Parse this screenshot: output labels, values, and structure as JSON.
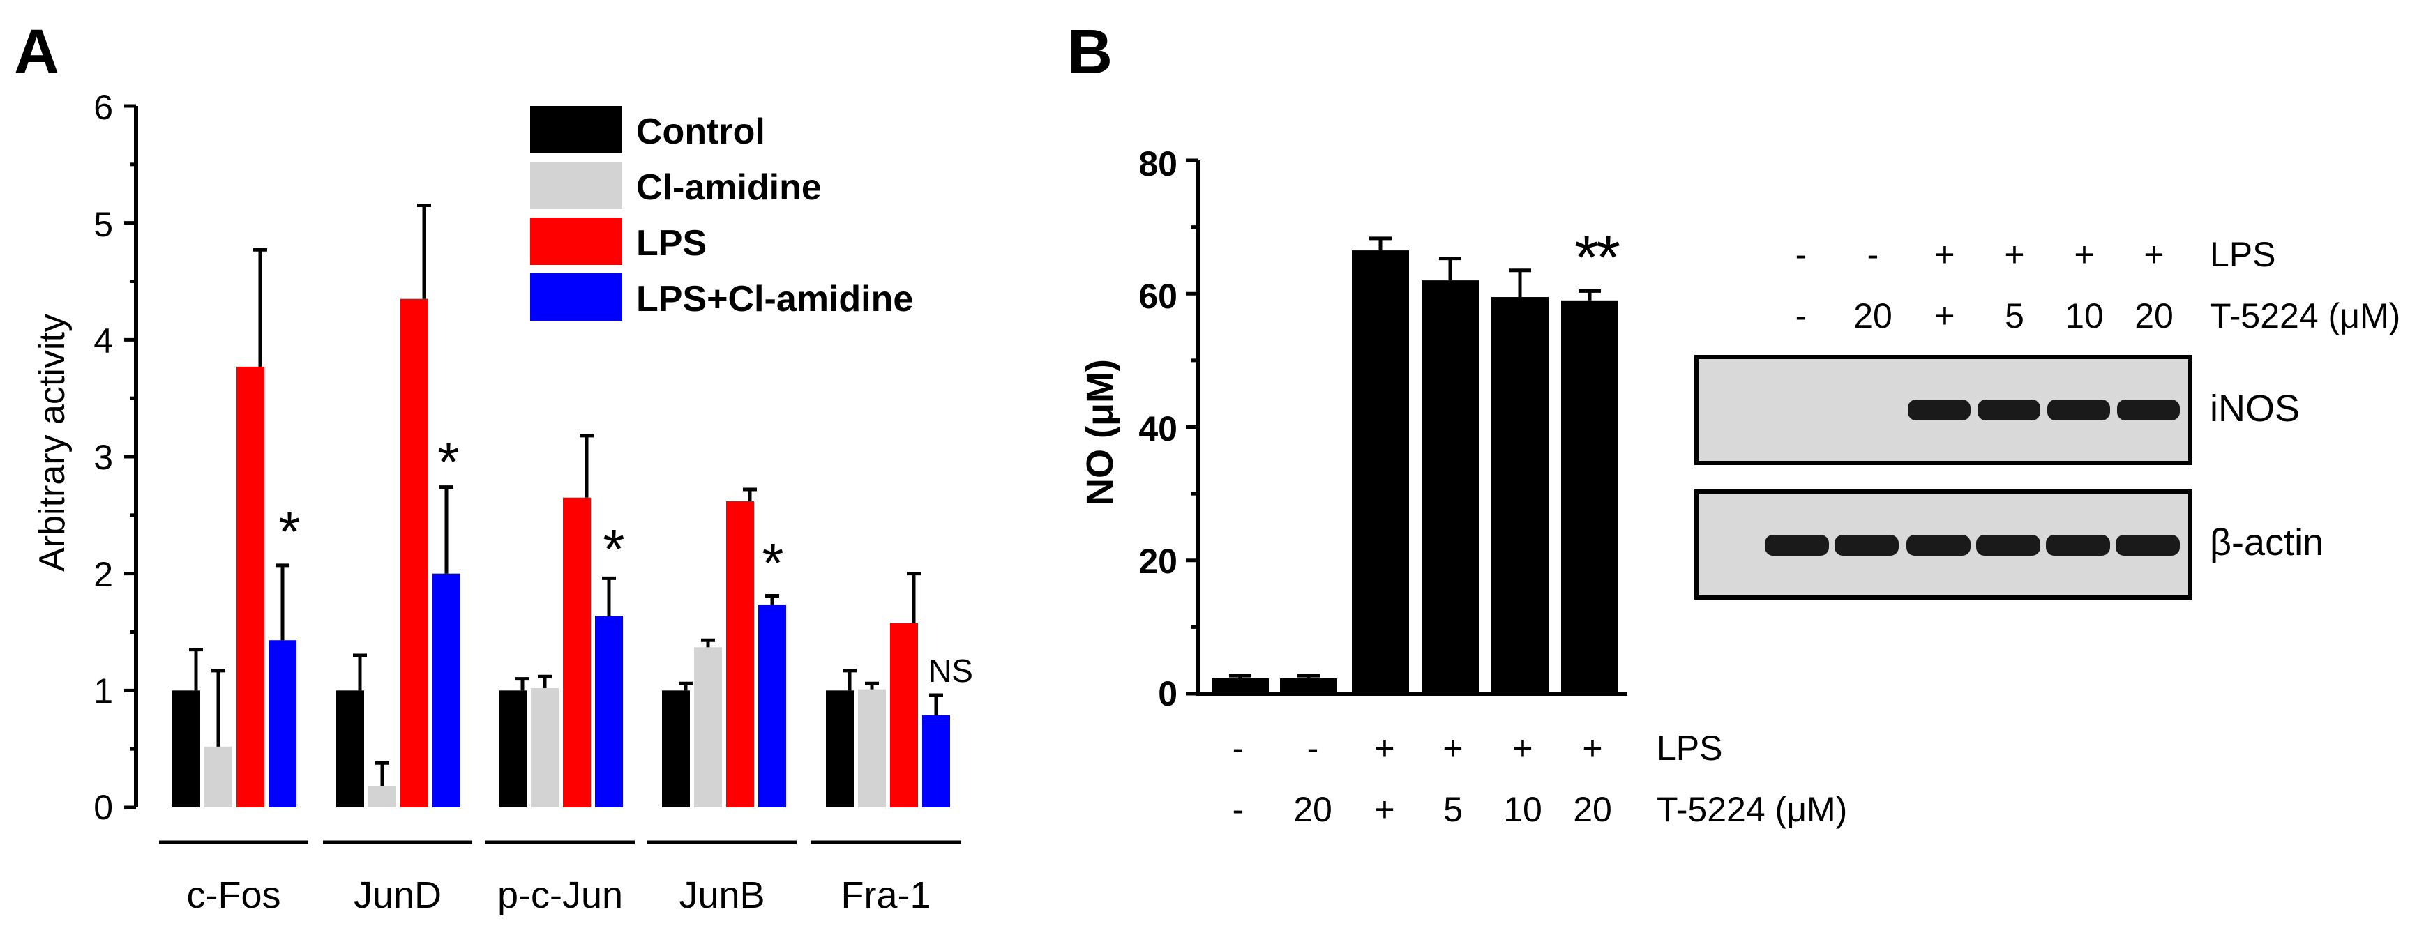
{
  "panel_a": {
    "label": "A",
    "ylabel": "Arbitrary activity",
    "y_ticks": [
      "0",
      "1",
      "2",
      "3",
      "4",
      "5",
      "6"
    ],
    "ylim": [
      0,
      6
    ],
    "groups": [
      "c-Fos",
      "JunD",
      "p-c-Jun",
      "JunB",
      "Fra-1"
    ],
    "legend": [
      "Control",
      "Cl-amidine",
      "LPS",
      "LPS+Cl-amidine"
    ],
    "annotations": [
      "*",
      "*",
      "*",
      "*",
      "NS"
    ]
  },
  "panel_b": {
    "label": "B",
    "ylabel": "NO (μM)",
    "y_ticks": [
      "0",
      "20",
      "40",
      "60",
      "80"
    ],
    "ylim": [
      0,
      80
    ],
    "significance": "**",
    "lps_row": [
      "-",
      "-",
      "+",
      "+",
      "+",
      "+"
    ],
    "t5224_row": [
      "-",
      "20",
      "+",
      "5",
      "10",
      "20"
    ],
    "lps_label": "LPS",
    "t5224_label": "T-5224 (μM)",
    "blot": {
      "lps_row": [
        "-",
        "-",
        "+",
        "+",
        "+",
        "+"
      ],
      "t5224_row": [
        "-",
        "20",
        "+",
        "5",
        "10",
        "20"
      ],
      "lps_label": "LPS",
      "t5224_label": "T-5224 (μM)",
      "bands": [
        "iNOS",
        "β-actin"
      ],
      "inos_intensity": [
        0,
        0,
        1,
        1,
        1,
        1
      ],
      "actin_intensity": [
        1,
        1,
        1,
        1,
        1,
        1
      ]
    }
  },
  "colors": {
    "control": "#000000",
    "cl_amidine": "#d3d3d3",
    "lps": "#ff0000",
    "lps_cl": "#0000ff",
    "blot_bg": "#d9d9d9"
  },
  "chart_data": [
    {
      "type": "bar",
      "title": "",
      "xlabel": "",
      "ylabel": "Arbitrary activity",
      "ylim": [
        0,
        6
      ],
      "categories": [
        "c-Fos",
        "JunD",
        "p-c-Jun",
        "JunB",
        "Fra-1"
      ],
      "series": [
        {
          "name": "Control",
          "values": [
            1.0,
            1.0,
            1.0,
            1.0,
            1.0
          ],
          "errors": [
            0.35,
            0.3,
            0.1,
            0.06,
            0.17
          ]
        },
        {
          "name": "Cl-amidine",
          "values": [
            0.52,
            0.18,
            1.02,
            1.37,
            1.01
          ],
          "errors": [
            0.65,
            0.2,
            0.1,
            0.06,
            0.05
          ]
        },
        {
          "name": "LPS",
          "values": [
            3.77,
            4.35,
            2.65,
            2.62,
            1.58
          ],
          "errors": [
            1.0,
            0.8,
            0.53,
            0.1,
            0.42
          ]
        },
        {
          "name": "LPS+Cl-amidine",
          "values": [
            1.43,
            2.0,
            1.64,
            1.73,
            0.79
          ],
          "errors": [
            0.64,
            0.74,
            0.32,
            0.08,
            0.17
          ]
        }
      ]
    },
    {
      "type": "bar",
      "title": "",
      "xlabel": "",
      "ylabel": "NO (μM)",
      "ylim": [
        0,
        80
      ],
      "categories": [
        "- / -",
        "- / 20",
        "+ / +",
        "+ / 5",
        "+ / 10",
        "+ / 20"
      ],
      "series": [
        {
          "name": "NO",
          "values": [
            2.3,
            2.3,
            66.5,
            62.0,
            59.5,
            59.0
          ],
          "errors": [
            0.4,
            0.4,
            1.8,
            3.3,
            4.0,
            1.4
          ]
        }
      ]
    }
  ]
}
